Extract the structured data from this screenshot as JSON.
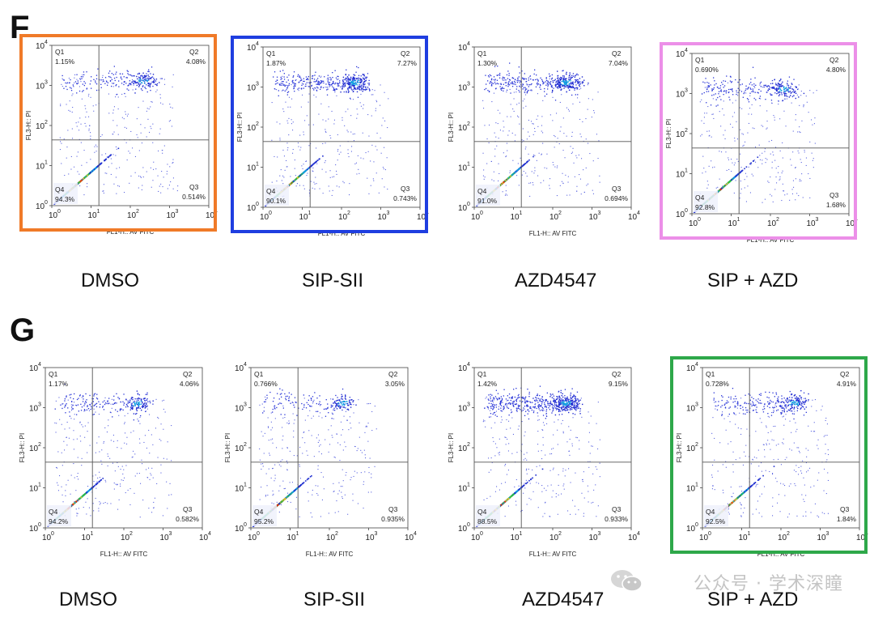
{
  "panels": [
    {
      "letter": "F",
      "plots": [
        {
          "condition": "DMSO",
          "q1": "1.15%",
          "q2": "4.08%",
          "q3": "0.514%",
          "q4": "94.3%",
          "highlight": "#f07a28"
        },
        {
          "condition": "SIP-SII",
          "q1": "1.87%",
          "q2": "7.27%",
          "q3": "0.743%",
          "q4": "90.1%",
          "highlight": "#1f3ee0"
        },
        {
          "condition": "AZD4547",
          "q1": "1.30%",
          "q2": "7.04%",
          "q3": "0.694%",
          "q4": "91.0%",
          "highlight": ""
        },
        {
          "condition": "SIP + AZD",
          "q1": "0.690%",
          "q2": "4.80%",
          "q3": "1.68%",
          "q4": "92.8%",
          "highlight": "#ec8fe8"
        }
      ]
    },
    {
      "letter": "G",
      "plots": [
        {
          "condition": "DMSO",
          "q1": "1.17%",
          "q2": "4.06%",
          "q3": "0.582%",
          "q4": "94.2%",
          "highlight": ""
        },
        {
          "condition": "SIP-SII",
          "q1": "0.766%",
          "q2": "3.05%",
          "q3": "0.935%",
          "q4": "95.2%",
          "highlight": ""
        },
        {
          "condition": "AZD4547",
          "q1": "1.42%",
          "q2": "9.15%",
          "q3": "0.933%",
          "q4": "88.5%",
          "highlight": ""
        },
        {
          "condition": "SIP + AZD",
          "q1": "0.728%",
          "q2": "4.91%",
          "q3": "1.84%",
          "q4": "92.5%",
          "highlight": "#2ea84a"
        }
      ]
    }
  ],
  "axes": {
    "x_label": "FL1-H:: AV FITC",
    "y_label": "FL3-H:: PI",
    "tick_base": "10",
    "tick_exponents": [
      "0",
      "1",
      "2",
      "3",
      "4"
    ],
    "quadrant_names": [
      "Q1",
      "Q2",
      "Q3",
      "Q4"
    ]
  },
  "watermark": "公众号 · 学术深瞳"
}
